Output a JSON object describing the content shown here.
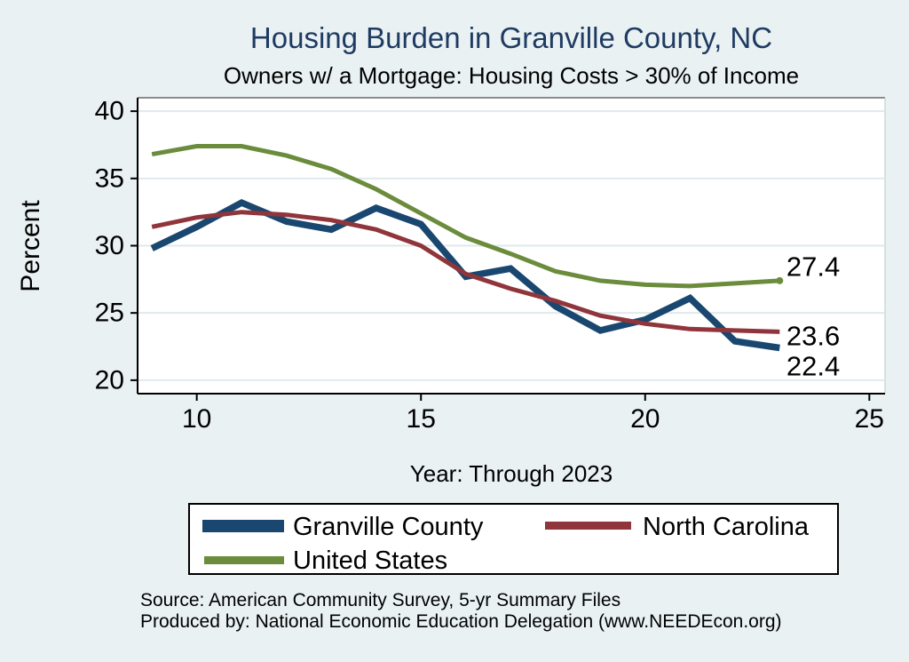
{
  "background_color": "#e9f1f2",
  "title": {
    "text": "Housing Burden in Granville County, NC",
    "color": "#1f3b63"
  },
  "subtitle": {
    "text": "Owners w/ a Mortgage: Housing Costs > 30% of Income"
  },
  "footer": {
    "line1": "Source: American Community Survey, 5-yr Summary Files",
    "line2": "Produced by: National Economic Education Delegation (www.NEEDEcon.org)"
  },
  "chart_data": {
    "type": "line",
    "title": "Housing Burden in Granville County, NC",
    "subtitle": "Owners w/ a Mortgage: Housing Costs > 30% of Income",
    "xlabel": "Year: Through 2023",
    "ylabel": "Percent",
    "years": [
      2009,
      2010,
      2011,
      2012,
      2013,
      2014,
      2015,
      2016,
      2017,
      2018,
      2019,
      2020,
      2021,
      2022,
      2023
    ],
    "x": [
      9,
      10,
      11,
      12,
      13,
      14,
      15,
      16,
      17,
      18,
      19,
      20,
      21,
      22,
      23
    ],
    "xlim": [
      8.68,
      25.35
    ],
    "ylim": [
      19.0,
      41.0
    ],
    "xticks": {
      "values": [
        10,
        15,
        20,
        25
      ],
      "labels": [
        "10",
        "15",
        "20",
        "25"
      ]
    },
    "yticks": {
      "values": [
        40,
        35,
        30,
        25,
        20
      ],
      "labels": [
        "40",
        "35",
        "30",
        "25",
        "20"
      ]
    },
    "grid": "horizontal",
    "legend_position": "bottom",
    "colors": {
      "plot_background": "#ffffff",
      "gridline": "#dfeaec",
      "axis": "#000000",
      "border_top": "#222222",
      "border_right": "#b6c9ce"
    },
    "series": [
      {
        "name": "Granville County",
        "color": "#1a476f",
        "line_width": 7.5,
        "values": [
          29.8,
          31.4,
          33.2,
          31.8,
          31.2,
          32.8,
          31.6,
          27.7,
          28.3,
          25.5,
          23.7,
          24.5,
          26.1,
          22.9,
          22.4
        ]
      },
      {
        "name": "North Carolina",
        "color": "#90353b",
        "line_width": 5,
        "values": [
          31.4,
          32.1,
          32.5,
          32.3,
          31.9,
          31.2,
          30.0,
          27.9,
          26.8,
          25.9,
          24.8,
          24.2,
          23.8,
          23.7,
          23.6
        ]
      },
      {
        "name": "United States",
        "color": "#6b8c3c",
        "line_width": 5,
        "end_marker": true,
        "values": [
          36.8,
          37.4,
          37.4,
          36.7,
          35.7,
          34.2,
          32.4,
          30.6,
          29.4,
          28.1,
          27.4,
          27.1,
          27.0,
          27.2,
          27.4
        ]
      }
    ],
    "end_labels": [
      {
        "text": "27.4",
        "x": 23.15,
        "y": 28.45
      },
      {
        "text": "23.6",
        "x": 23.15,
        "y": 23.3
      },
      {
        "text": "22.4",
        "x": 23.15,
        "y": 21.05
      }
    ]
  }
}
